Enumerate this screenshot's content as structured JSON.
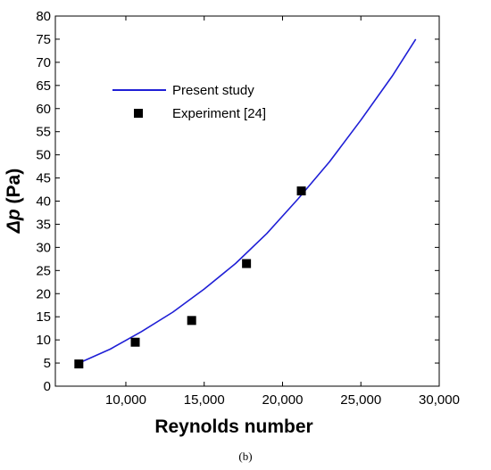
{
  "caption": "(b)",
  "chart_data": {
    "type": "scatter",
    "xlabel": "Reynolds number",
    "ylabel_symbol": "Δp",
    "ylabel_unit": " (Pa)",
    "xlim": [
      5500,
      30000
    ],
    "ylim": [
      0,
      80
    ],
    "xticks": [
      10000,
      15000,
      20000,
      25000,
      30000
    ],
    "xtick_labels": [
      "10,000",
      "15,000",
      "20,000",
      "25,000",
      "30,000"
    ],
    "yticks": [
      0,
      5,
      10,
      15,
      20,
      25,
      30,
      35,
      40,
      45,
      50,
      55,
      60,
      65,
      70,
      75,
      80
    ],
    "ytick_labels": [
      "0",
      "5",
      "10",
      "15",
      "20",
      "25",
      "30",
      "35",
      "40",
      "45",
      "50",
      "55",
      "60",
      "65",
      "70",
      "75",
      "80"
    ],
    "legend_position": "upper-left",
    "series": [
      {
        "name": "Present study",
        "kind": "line",
        "color": "#1f1fd6",
        "x": [
          7000,
          9000,
          11000,
          13000,
          15000,
          17000,
          19000,
          21000,
          23000,
          25000,
          27000,
          28500
        ],
        "y": [
          5.0,
          8.0,
          11.8,
          16.0,
          21.0,
          26.5,
          33.0,
          40.5,
          48.5,
          57.5,
          67.0,
          75.0
        ]
      },
      {
        "name": "Experiment [24]",
        "kind": "scatter",
        "color": "#000000",
        "x": [
          7000,
          10600,
          14200,
          17700,
          21200
        ],
        "y": [
          4.8,
          9.5,
          14.2,
          26.5,
          42.2
        ]
      }
    ]
  }
}
